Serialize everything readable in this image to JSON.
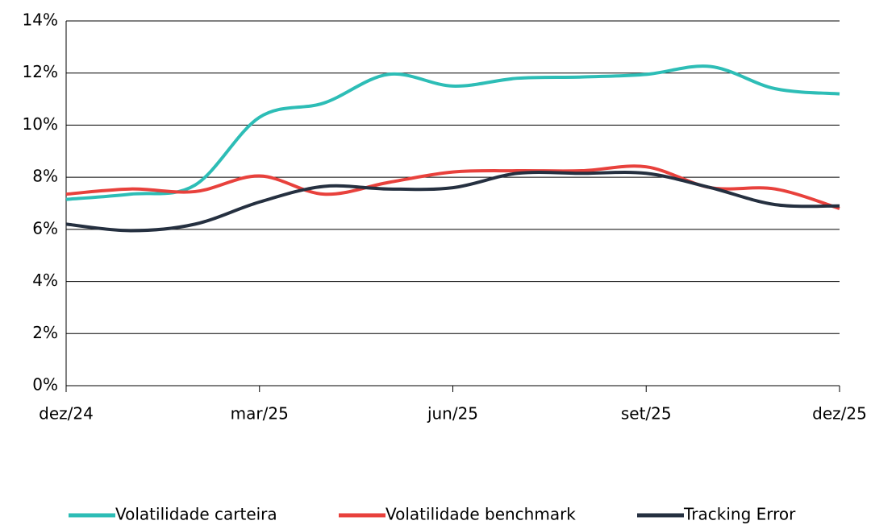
{
  "chart_data": {
    "type": "line",
    "categories": [
      "dez/24",
      null,
      null,
      "mar/25",
      null,
      null,
      "jun/25",
      null,
      null,
      "set/25",
      null,
      null,
      "dez/25"
    ],
    "series": [
      {
        "name": "Volatilidade carteira",
        "color": "#2dbdb6",
        "values": [
          7.15,
          7.35,
          7.7,
          10.3,
          10.85,
          11.95,
          11.5,
          11.8,
          11.85,
          11.95,
          12.25,
          11.4,
          11.2
        ]
      },
      {
        "name": "Volatilidade benchmark",
        "color": "#e8413c",
        "values": [
          7.35,
          7.55,
          7.45,
          8.05,
          7.35,
          7.8,
          8.2,
          8.25,
          8.25,
          8.4,
          7.6,
          7.55,
          6.8
        ]
      },
      {
        "name": "Tracking Error",
        "color": "#253040",
        "values": [
          6.2,
          5.95,
          6.2,
          7.05,
          7.65,
          7.55,
          7.6,
          8.15,
          8.15,
          8.15,
          7.6,
          6.95,
          6.9
        ]
      }
    ],
    "ylim": [
      0,
      14
    ],
    "yticks": [
      {
        "value": 0,
        "label": "0%"
      },
      {
        "value": 2,
        "label": "2%"
      },
      {
        "value": 4,
        "label": "4%"
      },
      {
        "value": 6,
        "label": "6%"
      },
      {
        "value": 8,
        "label": "8%"
      },
      {
        "value": 10,
        "label": "10%"
      },
      {
        "value": 12,
        "label": "12%"
      },
      {
        "value": 14,
        "label": "14%"
      }
    ],
    "grid": true,
    "legend": "bottom"
  }
}
